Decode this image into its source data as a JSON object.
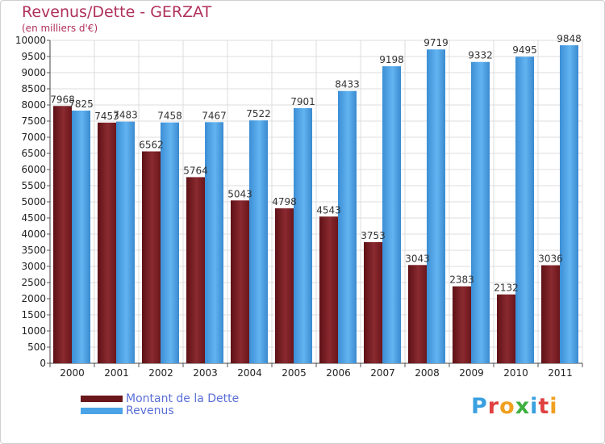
{
  "header": {
    "title": "Revenus/Dette - GERZAT",
    "subtitle": "(en milliers d'€)"
  },
  "logo": {
    "text": "Proxiti",
    "letters": [
      "P",
      "r",
      "o",
      "x",
      "i",
      "t",
      "i"
    ],
    "colors": [
      "#3aa0e0",
      "#e04040",
      "#f0a020",
      "#40b040",
      "#3aa0e0",
      "#e04040",
      "#f0a020"
    ]
  },
  "colors": {
    "dette": "#7a1c22",
    "revenus": "#4aa3e6"
  },
  "chart_data": {
    "type": "bar",
    "categories": [
      "2000",
      "2001",
      "2002",
      "2003",
      "2004",
      "2005",
      "2006",
      "2007",
      "2008",
      "2009",
      "2010",
      "2011"
    ],
    "series": [
      {
        "name": "Montant de la Dette",
        "values": [
          7968,
          7453,
          6562,
          5764,
          5043,
          4798,
          4543,
          3753,
          3043,
          2383,
          2132,
          3036
        ]
      },
      {
        "name": "Revenus",
        "values": [
          7825,
          7483,
          7458,
          7467,
          7522,
          7901,
          8433,
          9198,
          9719,
          9332,
          9495,
          9848
        ]
      }
    ],
    "yticks": [
      "0",
      "500",
      "1000",
      "1500",
      "2000",
      "2500",
      "3000",
      "3500",
      "4000",
      "4500",
      "5000",
      "5500",
      "6000",
      "6500",
      "7000",
      "7500",
      "8000",
      "8500",
      "9000",
      "9500",
      "10000"
    ],
    "ylim": [
      0,
      10000
    ],
    "grid": true,
    "legend": "bottom-left"
  }
}
